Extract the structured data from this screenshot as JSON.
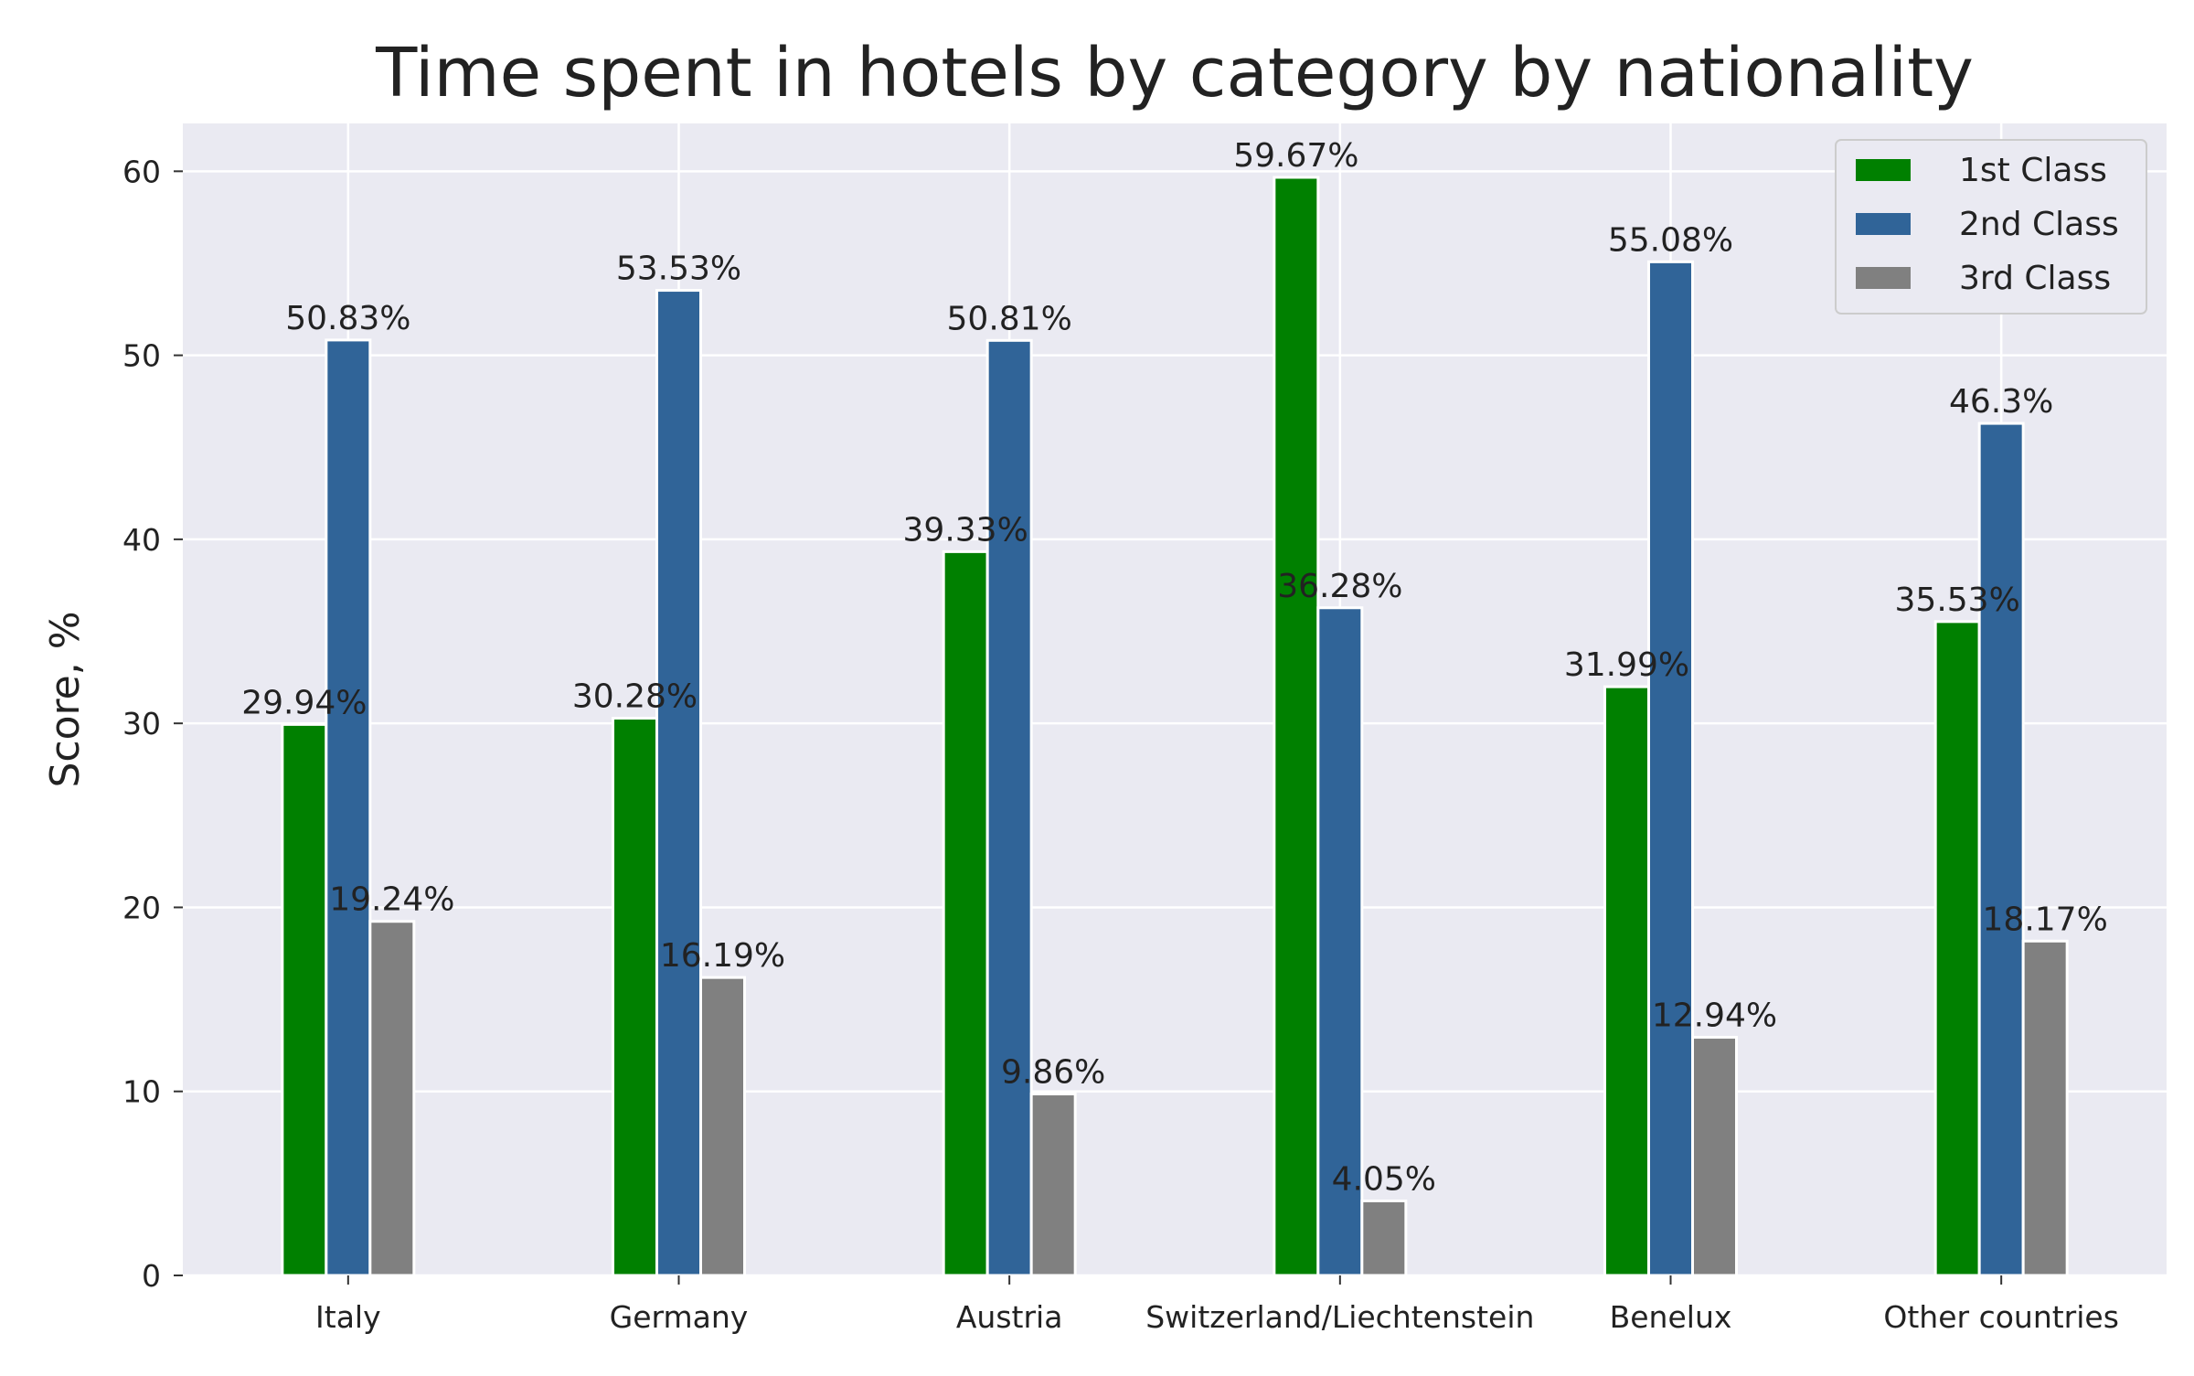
{
  "chart_data": {
    "type": "bar",
    "title": "Time spent in hotels by category by nationality",
    "xlabel": "",
    "ylabel": "Score, %",
    "categories": [
      "Italy",
      "Germany",
      "Austria",
      "Switzerland/Liechtenstein",
      "Benelux",
      "Other countries"
    ],
    "series": [
      {
        "name": "1st Class",
        "color": "#008000",
        "values": [
          29.94,
          30.28,
          39.33,
          59.67,
          31.99,
          35.53
        ],
        "labels": [
          "29.94%",
          "30.28%",
          "39.33%",
          "59.67%",
          "31.99%",
          "35.53%"
        ]
      },
      {
        "name": "2nd Class",
        "color": "#306498",
        "values": [
          50.83,
          53.53,
          50.81,
          36.28,
          55.08,
          46.3
        ],
        "labels": [
          "50.83%",
          "53.53%",
          "50.81%",
          "36.28%",
          "55.08%",
          "46.3%"
        ]
      },
      {
        "name": "3rd Class",
        "color": "#808080",
        "values": [
          19.24,
          16.19,
          9.86,
          4.05,
          12.94,
          18.17
        ],
        "labels": [
          "19.24%",
          "16.19%",
          "9.86%",
          "4.05%",
          "12.94%",
          "18.17%"
        ]
      }
    ],
    "yticks": [
      0,
      10,
      20,
      30,
      40,
      50,
      60
    ],
    "ylim": [
      0,
      62.6
    ],
    "grid": true,
    "legend_position": "top-right",
    "background_color": "#eaeaf2",
    "grid_color": "#ffffff"
  }
}
